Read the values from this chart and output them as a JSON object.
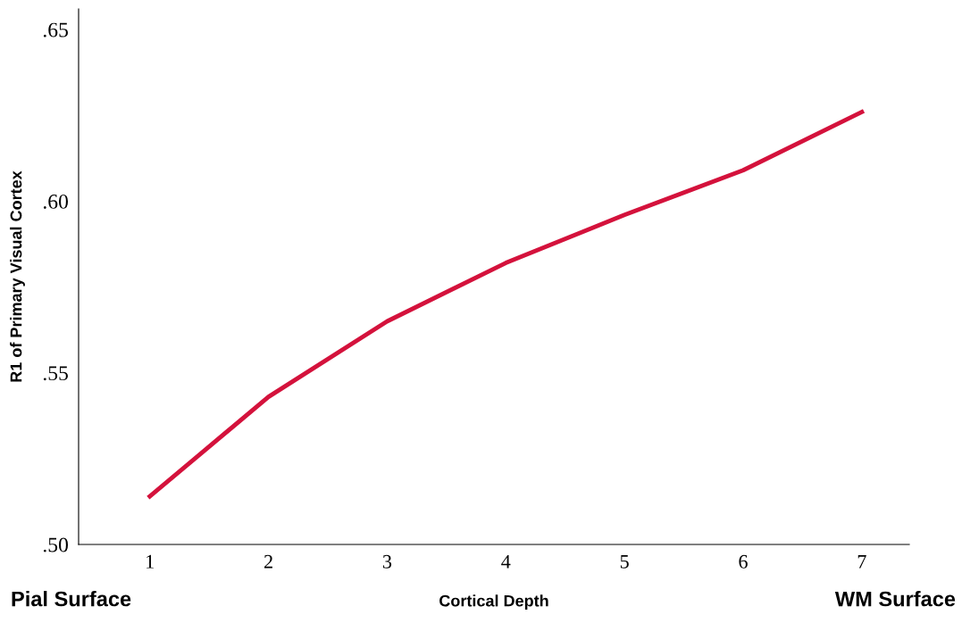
{
  "chart_data": {
    "type": "line",
    "xlabel": "Cortical Depth",
    "ylabel": "R1 of Primary Visual Cortex",
    "categories": [
      "1",
      "2",
      "3",
      "4",
      "5",
      "6",
      "7"
    ],
    "series": [
      {
        "color": "#d4123c",
        "values": [
          0.514,
          0.543,
          0.565,
          0.582,
          0.596,
          0.609,
          0.626
        ]
      }
    ],
    "ylim": [
      0.5,
      0.656
    ],
    "yticks": [
      {
        "value": 0.5,
        "label": ".50"
      },
      {
        "value": 0.55,
        "label": ".55"
      },
      {
        "value": 0.6,
        "label": ".60"
      },
      {
        "value": 0.65,
        "label": ".65"
      }
    ],
    "annotations": [
      "Pial Surface",
      "WM Surface"
    ],
    "grid": false,
    "legend": false,
    "marker": "none",
    "line_style": "solid"
  }
}
